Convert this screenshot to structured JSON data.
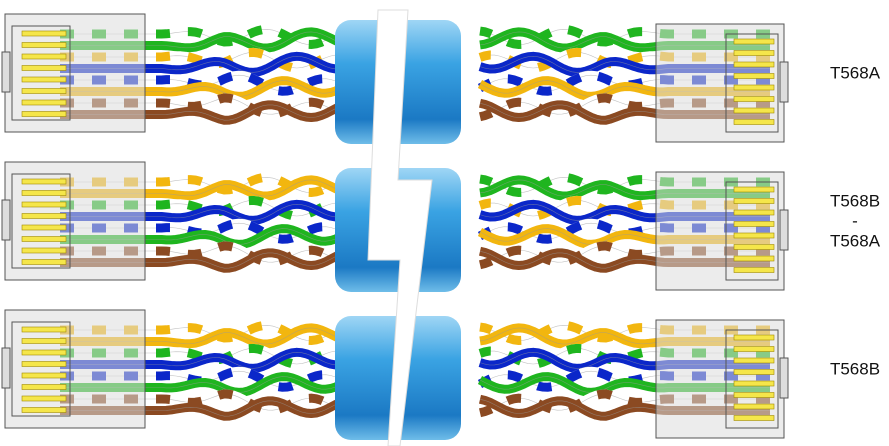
{
  "rows": [
    {
      "label_lines": [
        "T568A"
      ]
    },
    {
      "label_lines": [
        "T568B",
        "-",
        "T568A"
      ]
    },
    {
      "label_lines": [
        "T568B"
      ]
    }
  ]
}
